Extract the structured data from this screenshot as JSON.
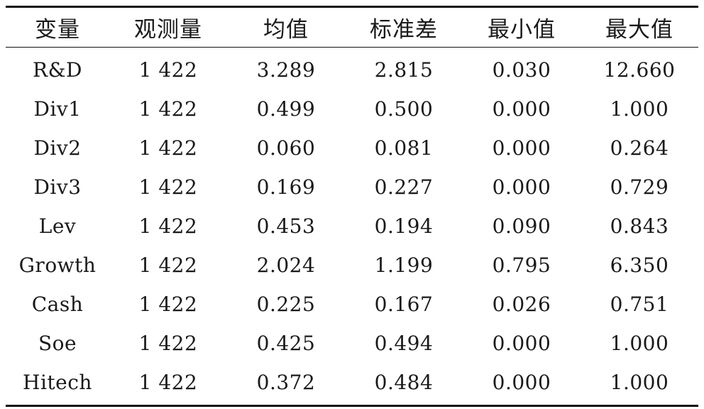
{
  "table": {
    "headers": [
      "变量",
      "观测量",
      "均值",
      "标准差",
      "最小值",
      "最大值"
    ],
    "rows": [
      [
        "R&D",
        "1 422",
        "3.289",
        "2.815",
        "0.030",
        "12.660"
      ],
      [
        "Div1",
        "1 422",
        "0.499",
        "0.500",
        "0.000",
        "1.000"
      ],
      [
        "Div2",
        "1 422",
        "0.060",
        "0.081",
        "0.000",
        "0.264"
      ],
      [
        "Div3",
        "1 422",
        "0.169",
        "0.227",
        "0.000",
        "0.729"
      ],
      [
        "Lev",
        "1 422",
        "0.453",
        "0.194",
        "0.090",
        "0.843"
      ],
      [
        "Growth",
        "1 422",
        "2.024",
        "1.199",
        "0.795",
        "6.350"
      ],
      [
        "Cash",
        "1 422",
        "0.225",
        "0.167",
        "0.026",
        "0.751"
      ],
      [
        "Soe",
        "1 422",
        "0.425",
        "0.494",
        "0.000",
        "1.000"
      ],
      [
        "Hitech",
        "1 422",
        "0.372",
        "0.484",
        "0.000",
        "1.000"
      ]
    ]
  }
}
